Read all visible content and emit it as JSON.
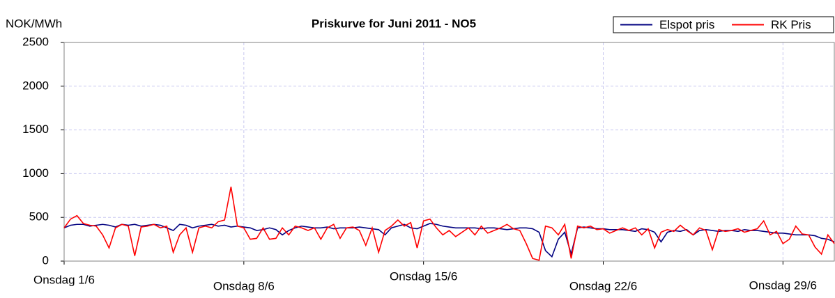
{
  "chart_data": {
    "type": "line",
    "title": "Priskurve for Juni 2011 - NO5",
    "ylabel": "NOK/MWh",
    "xlim": [
      1,
      31
    ],
    "ylim": [
      0,
      2500
    ],
    "yticks": [
      0,
      500,
      1000,
      1500,
      2000,
      2500
    ],
    "xticks": [
      {
        "value": 1,
        "label": "Onsdag 1/6"
      },
      {
        "value": 8,
        "label": "Onsdag 8/6"
      },
      {
        "value": 15,
        "label": "Onsdag 15/6"
      },
      {
        "value": 22,
        "label": "Onsdag 22/6"
      },
      {
        "value": 29,
        "label": "Onsdag 29/6"
      }
    ],
    "grid": true,
    "legend": "top-right",
    "x": [
      1,
      1.25,
      1.5,
      1.75,
      2,
      2.25,
      2.5,
      2.75,
      3,
      3.25,
      3.5,
      3.75,
      4,
      4.25,
      4.5,
      4.75,
      5,
      5.25,
      5.5,
      5.75,
      6,
      6.25,
      6.5,
      6.75,
      7,
      7.25,
      7.5,
      7.75,
      8,
      8.25,
      8.5,
      8.75,
      9,
      9.25,
      9.5,
      9.75,
      10,
      10.25,
      10.5,
      10.75,
      11,
      11.25,
      11.5,
      11.75,
      12,
      12.25,
      12.5,
      12.75,
      13,
      13.25,
      13.5,
      13.75,
      14,
      14.25,
      14.5,
      14.75,
      15,
      15.25,
      15.5,
      15.75,
      16,
      16.25,
      16.5,
      16.75,
      17,
      17.25,
      17.5,
      17.75,
      18,
      18.25,
      18.5,
      18.75,
      19,
      19.25,
      19.5,
      19.75,
      20,
      20.25,
      20.5,
      20.75,
      21,
      21.25,
      21.5,
      21.75,
      22,
      22.25,
      22.5,
      22.75,
      23,
      23.25,
      23.5,
      23.75,
      24,
      24.25,
      24.5,
      24.75,
      25,
      25.25,
      25.5,
      25.75,
      26,
      26.25,
      26.5,
      26.75,
      27,
      27.25,
      27.5,
      27.75,
      28,
      28.25,
      28.5,
      28.75,
      29,
      29.25,
      29.5,
      29.75,
      30,
      30.25,
      30.5,
      30.75,
      31
    ],
    "series": [
      {
        "name": "Elspot pris",
        "color": "#000080",
        "values": [
          380,
          410,
          420,
          420,
          400,
          410,
          420,
          410,
          390,
          420,
          410,
          420,
          400,
          410,
          420,
          410,
          380,
          350,
          420,
          410,
          380,
          400,
          410,
          420,
          400,
          410,
          390,
          400,
          390,
          380,
          350,
          360,
          380,
          360,
          300,
          350,
          380,
          400,
          390,
          380,
          380,
          390,
          370,
          380,
          380,
          380,
          390,
          380,
          370,
          360,
          300,
          380,
          400,
          420,
          380,
          370,
          400,
          430,
          420,
          400,
          390,
          380,
          380,
          380,
          380,
          370,
          380,
          380,
          370,
          360,
          370,
          380,
          380,
          370,
          330,
          120,
          50,
          250,
          330,
          80,
          380,
          390,
          380,
          370,
          370,
          360,
          360,
          360,
          350,
          340,
          370,
          360,
          330,
          220,
          330,
          350,
          340,
          360,
          300,
          350,
          360,
          350,
          340,
          350,
          350,
          340,
          360,
          350,
          350,
          340,
          330,
          320,
          320,
          310,
          300,
          300,
          300,
          290,
          260,
          250,
          220
        ]
      },
      {
        "name": "RK Pris",
        "color": "#ff0000",
        "values": [
          380,
          480,
          520,
          430,
          410,
          400,
          300,
          150,
          380,
          420,
          400,
          60,
          390,
          400,
          420,
          380,
          400,
          100,
          300,
          380,
          100,
          380,
          400,
          380,
          450,
          470,
          850,
          400,
          380,
          250,
          260,
          380,
          250,
          260,
          380,
          300,
          400,
          380,
          350,
          380,
          250,
          380,
          420,
          260,
          380,
          390,
          350,
          180,
          380,
          100,
          350,
          400,
          470,
          400,
          440,
          150,
          460,
          480,
          380,
          300,
          350,
          280,
          330,
          380,
          300,
          400,
          320,
          350,
          380,
          420,
          370,
          350,
          200,
          30,
          10,
          400,
          380,
          300,
          420,
          30,
          400,
          380,
          400,
          360,
          370,
          320,
          350,
          380,
          350,
          380,
          300,
          370,
          150,
          330,
          360,
          340,
          410,
          350,
          300,
          380,
          350,
          130,
          360,
          340,
          350,
          370,
          330,
          350,
          370,
          460,
          300,
          340,
          200,
          250,
          400,
          310,
          300,
          160,
          80,
          300,
          200
        ]
      }
    ]
  }
}
